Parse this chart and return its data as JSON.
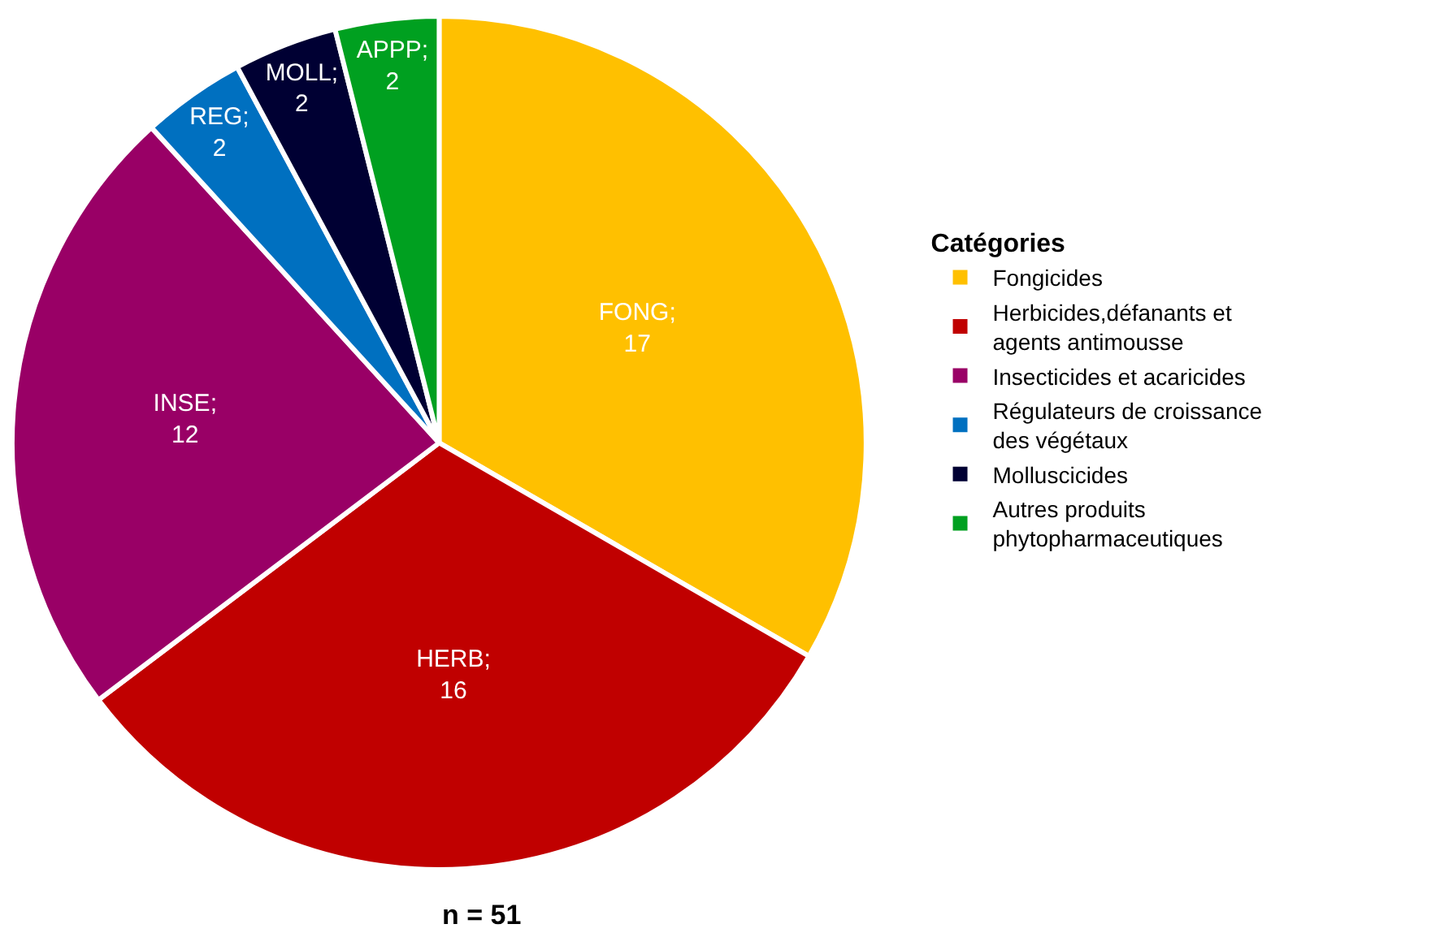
{
  "chart_data": {
    "type": "pie",
    "categories": [
      "Fongicides",
      "Herbicides,défanants et agents antimousse",
      "Insecticides et acaricides",
      "Régulateurs de croissance des végétaux",
      "Molluscicides",
      "Autres produits phytopharmaceutiques"
    ],
    "values": [
      17,
      16,
      12,
      2,
      2,
      2
    ],
    "colors": [
      "#ffc000",
      "#c00000",
      "#990066",
      "#0070c0",
      "#000033",
      "#00a020"
    ],
    "value_labels": [
      "FONG;\n17",
      "HERB;\n16",
      "INSE;\n12",
      "REG;\n2",
      "MOLL;\n2",
      "APPP;\n2"
    ],
    "legend_title": "Catégories",
    "legend": "right",
    "annotations": [
      "n = 51"
    ]
  }
}
